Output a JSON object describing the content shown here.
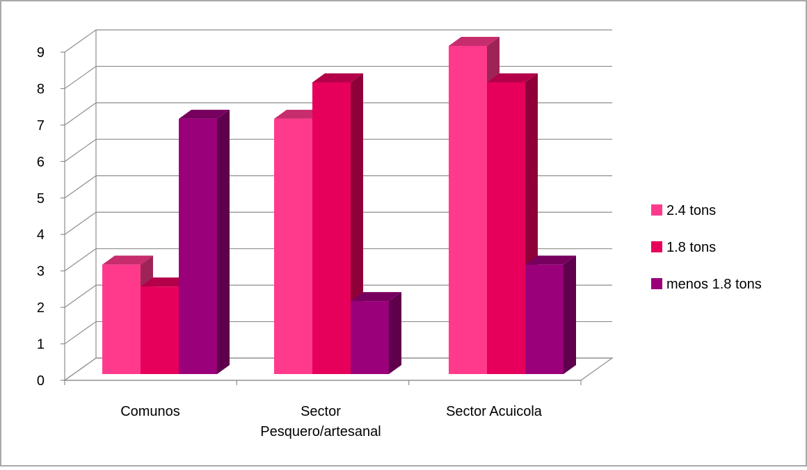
{
  "chart_data": {
    "type": "bar",
    "categories": [
      "Comunos",
      "Sector Pesquero/artesanal",
      "Sector Acuicola"
    ],
    "category_lines": [
      [
        "Comunos"
      ],
      [
        "Sector",
        "Pesquero/artesanal"
      ],
      [
        "Sector Acuicola"
      ]
    ],
    "series": [
      {
        "name": "2.4 tons",
        "values": [
          3,
          7,
          9
        ],
        "color": "#ff3a8c"
      },
      {
        "name": "1.8 tons",
        "values": [
          2.4,
          8,
          8
        ],
        "color": "#e6005c"
      },
      {
        "name": "menos 1.8 tons",
        "values": [
          7,
          2,
          3
        ],
        "color": "#99007a"
      }
    ],
    "ylim": [
      0,
      9
    ],
    "yticks": [
      "0",
      "1",
      "2",
      "3",
      "4",
      "5",
      "6",
      "7",
      "8",
      "9"
    ],
    "grid": true,
    "three_d": true,
    "legend_position": "right",
    "title": "",
    "xlabel": "",
    "ylabel": ""
  }
}
